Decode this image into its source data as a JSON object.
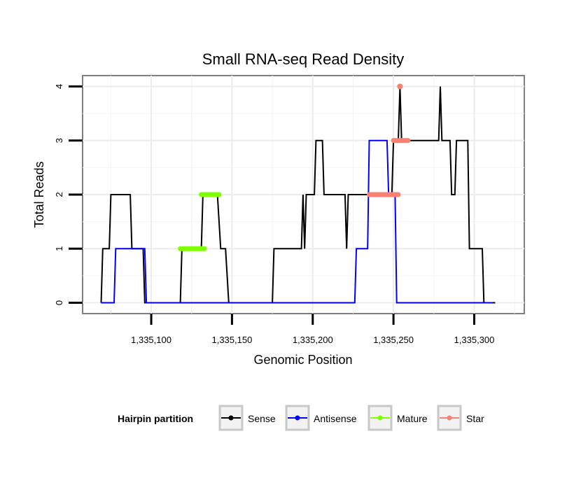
{
  "chart_data": {
    "type": "line",
    "title": "Small RNA-seq Read Density",
    "xlabel": "Genomic Position",
    "ylabel": "Total Reads",
    "xlim": [
      1335057.5,
      1335331
    ],
    "ylim": [
      -0.2,
      4.2
    ],
    "x_ticks": [
      1335100,
      1335150,
      1335200,
      1335250,
      1335300
    ],
    "x_tick_labels": [
      "1,335,100",
      "1,335,150",
      "1,335,200",
      "1,335,250",
      "1,335,300"
    ],
    "y_ticks": [
      0,
      1,
      2,
      3,
      4
    ],
    "y_tick_labels": [
      "0",
      "1",
      "2",
      "3",
      "4"
    ],
    "grid": true,
    "legend": {
      "title": "Hairpin partition",
      "position": "bottom",
      "entries": [
        "Sense",
        "Antisense",
        "Mature",
        "Star"
      ]
    },
    "series": [
      {
        "name": "Sense",
        "color": "#000000",
        "kind": "line",
        "points": [
          [
            1335069,
            0
          ],
          [
            1335070,
            1
          ],
          [
            1335074,
            1
          ],
          [
            1335075,
            2
          ],
          [
            1335087,
            2
          ],
          [
            1335088,
            1
          ],
          [
            1335095,
            1
          ],
          [
            1335096,
            0
          ],
          [
            1335118,
            0
          ],
          [
            1335119,
            1
          ],
          [
            1335131,
            1
          ],
          [
            1335132,
            2
          ],
          [
            1335141,
            2
          ],
          [
            1335143,
            1
          ],
          [
            1335146,
            1
          ],
          [
            1335148,
            0
          ],
          [
            1335175,
            0
          ],
          [
            1335176,
            1
          ],
          [
            1335193,
            1
          ],
          [
            1335194,
            2
          ],
          [
            1335195,
            1
          ],
          [
            1335196,
            2
          ],
          [
            1335201,
            2
          ],
          [
            1335202,
            3
          ],
          [
            1335206,
            3
          ],
          [
            1335207,
            2
          ],
          [
            1335220,
            2
          ],
          [
            1335221,
            1
          ],
          [
            1335222,
            2
          ],
          [
            1335249,
            2
          ],
          [
            1335250,
            3
          ],
          [
            1335253,
            3
          ],
          [
            1335254,
            4
          ],
          [
            1335255,
            3
          ],
          [
            1335278,
            3
          ],
          [
            1335279,
            4
          ],
          [
            1335280,
            3
          ],
          [
            1335285,
            3
          ],
          [
            1335286,
            2
          ],
          [
            1335288,
            2
          ],
          [
            1335289,
            3
          ],
          [
            1335296,
            3
          ],
          [
            1335297,
            1
          ],
          [
            1335305,
            1
          ],
          [
            1335306,
            0
          ],
          [
            1335313,
            0
          ]
        ]
      },
      {
        "name": "Antisense",
        "color": "#0000ff",
        "kind": "line",
        "points": [
          [
            1335069,
            0
          ],
          [
            1335077,
            0
          ],
          [
            1335078,
            1
          ],
          [
            1335096,
            1
          ],
          [
            1335097,
            0
          ],
          [
            1335226,
            0
          ],
          [
            1335227,
            1
          ],
          [
            1335234,
            1
          ],
          [
            1335235,
            3
          ],
          [
            1335246,
            3
          ],
          [
            1335247,
            2
          ],
          [
            1335251,
            2
          ],
          [
            1335252,
            0
          ],
          [
            1335311,
            0
          ]
        ]
      },
      {
        "name": "Mature",
        "color": "#7fff00",
        "kind": "segments",
        "segments": [
          [
            1335118,
            1335133,
            1
          ],
          [
            1335131,
            1335142,
            2
          ]
        ]
      },
      {
        "name": "Star",
        "color": "#fa8072",
        "kind": "segments",
        "segments": [
          [
            1335235,
            1335253,
            2
          ],
          [
            1335250,
            1335259,
            3
          ],
          [
            1335254,
            1335254,
            4
          ]
        ]
      }
    ]
  }
}
